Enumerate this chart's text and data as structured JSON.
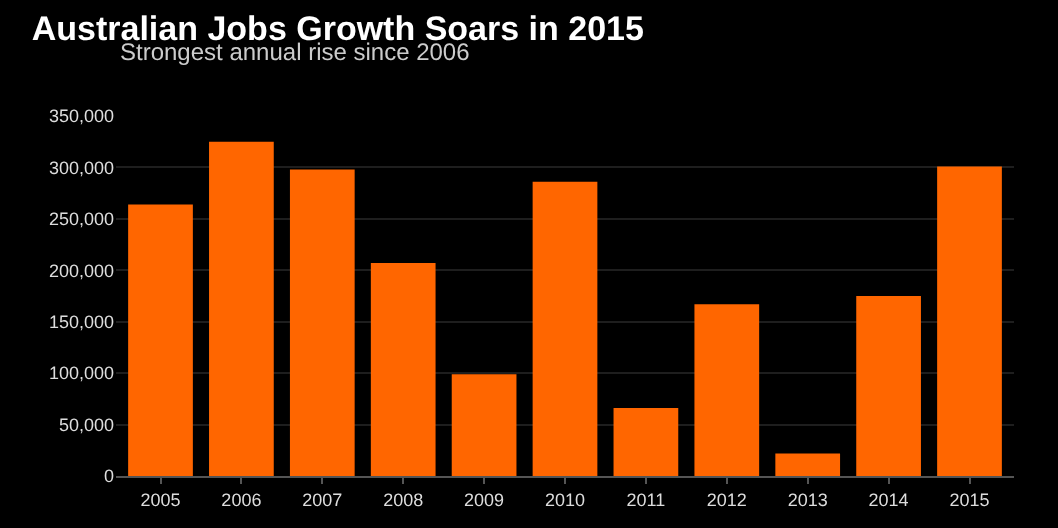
{
  "chart_data": {
    "type": "bar",
    "title": "Australian Jobs Growth Soars in 2015",
    "subtitle": "Strongest annual rise since 2006",
    "categories": [
      "2005",
      "2006",
      "2007",
      "2008",
      "2009",
      "2010",
      "2011",
      "2012",
      "2013",
      "2014",
      "2015"
    ],
    "values": [
      264000,
      325000,
      298000,
      207000,
      99000,
      286000,
      66000,
      167000,
      22000,
      175000,
      301000
    ],
    "color": "#ff6600",
    "ylim": [
      0,
      350000
    ],
    "yticks": [
      0,
      {
        "value": 50000,
        "label": "50,000"
      },
      {
        "value": 100000,
        "label": "100,000"
      },
      {
        "value": 150000,
        "label": "150,000"
      },
      {
        "value": 200000,
        "label": "200,000"
      },
      {
        "value": 250000,
        "label": "250,000"
      },
      {
        "value": 300000,
        "label": "300,000"
      },
      {
        "value": 350000,
        "label": "350,000"
      }
    ],
    "grid": "y"
  }
}
